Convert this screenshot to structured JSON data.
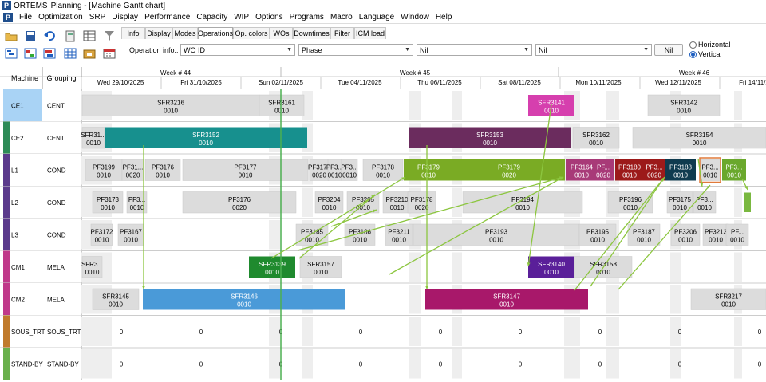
{
  "window": {
    "app": "ORTEMS",
    "title": "Planning - [Machine Gantt chart]",
    "app_icon": "P"
  },
  "menu": [
    "File",
    "Optimization",
    "SRP",
    "Display",
    "Performance",
    "Capacity",
    "WIP",
    "Options",
    "Programs",
    "Macro",
    "Language",
    "Window",
    "Help"
  ],
  "tabs": [
    "Info",
    "Display",
    "Modes",
    "Operations",
    "Op. colors",
    "WOs",
    "Downtimes",
    "Filter",
    "ICM load"
  ],
  "active_tab": "Operations",
  "operation_info": {
    "label": "Operation info.:",
    "field1": "WO ID",
    "field2": "Phase",
    "field3": "Nil",
    "field4": "Nil",
    "button": "Nil"
  },
  "orientation": {
    "horizontal": "Horizontal",
    "vertical": "Vertical",
    "selected": "Vertical"
  },
  "columns": {
    "machine": "Machine",
    "grouping": "Grouping"
  },
  "weeks": [
    {
      "label": "Week # 44",
      "x": 1
    },
    {
      "label": "Week # 45",
      "x": 1
    },
    {
      "label": "Week # 46",
      "x": 1
    }
  ],
  "days": [
    "Wed 29/10/2025",
    "Fri 31/10/2025",
    "Sun 02/11/2025",
    "Tue 04/11/2025",
    "Thu 06/11/2025",
    "Sat 08/11/2025",
    "Mon 10/11/2025",
    "Wed 12/11/2025",
    "Fri 14/11/2"
  ],
  "rows": [
    {
      "machine": "CE1",
      "grouping": "CENT",
      "color": "#a9d3f5"
    },
    {
      "machine": "CE2",
      "grouping": "CENT",
      "color": "#2e8b57"
    },
    {
      "machine": "L1",
      "grouping": "COND",
      "color": "#5b3a8c"
    },
    {
      "machine": "L2",
      "grouping": "COND",
      "color": "#5b3a8c"
    },
    {
      "machine": "L3",
      "grouping": "COND",
      "color": "#5b3a8c"
    },
    {
      "machine": "CM1",
      "grouping": "MELA",
      "color": "#c0398a"
    },
    {
      "machine": "CM2",
      "grouping": "MELA",
      "color": "#c0398a"
    },
    {
      "machine": "SOUS_TRT",
      "grouping": "SOUS_TRT",
      "color": "#c07a2c"
    },
    {
      "machine": "STAND-BY",
      "grouping": "STAND-BY",
      "color": "#6ab04c"
    }
  ],
  "ops": [
    {
      "r": 0,
      "a": "SFR3216",
      "b": "0010"
    },
    {
      "r": 0,
      "a": "SFR3161",
      "b": "0010"
    },
    {
      "r": 0,
      "a": "SFR3141",
      "b": "0010",
      "c": "#d63fae"
    },
    {
      "r": 0,
      "a": "SFR3142",
      "b": "0010"
    },
    {
      "r": 1,
      "a": "SFR31...",
      "b": "0010"
    },
    {
      "r": 1,
      "a": "SFR3152",
      "b": "0010",
      "c": "#17908e"
    },
    {
      "r": 1,
      "a": "SFR3153",
      "b": "0010",
      "c": "#6b2c5e"
    },
    {
      "r": 1,
      "a": "SFR3162",
      "b": "0010"
    },
    {
      "r": 1,
      "a": "SFR3154",
      "b": "0010"
    },
    {
      "r": 2,
      "a": "PF3199",
      "b": "0010"
    },
    {
      "r": 2,
      "a": "PF31...",
      "b": "0020"
    },
    {
      "r": 2,
      "a": "PF3176",
      "b": "0010"
    },
    {
      "r": 2,
      "a": "PF3177",
      "b": "0010"
    },
    {
      "r": 2,
      "a": "PF3177",
      "b": "0020"
    },
    {
      "r": 2,
      "a": "PF3...",
      "b": "0010"
    },
    {
      "r": 2,
      "a": "PF3...",
      "b": "0010"
    },
    {
      "r": 2,
      "a": "PF3178",
      "b": "0010"
    },
    {
      "r": 2,
      "a": "PF3179",
      "b": "0010",
      "c": "#7aab24"
    },
    {
      "r": 2,
      "a": "PF3179",
      "b": "0020",
      "c": "#7aab24"
    },
    {
      "r": 2,
      "a": "PF3164",
      "b": "0010",
      "c": "#a83a78"
    },
    {
      "r": 2,
      "a": "PF...",
      "b": "0020",
      "c": "#a83a78"
    },
    {
      "r": 2,
      "a": "PF3180",
      "b": "0010",
      "c": "#9c1a1a"
    },
    {
      "r": 2,
      "a": "PF3...",
      "b": "0020",
      "c": "#9c1a1a"
    },
    {
      "r": 2,
      "a": "PF3188",
      "b": "0010",
      "c": "#0f3b4f"
    },
    {
      "r": 2,
      "a": "PF3...",
      "b": "0010"
    },
    {
      "r": 2,
      "a": "PF3...",
      "b": "0010",
      "c": "#6aa82c"
    },
    {
      "r": 3,
      "a": "PF3173",
      "b": "0010"
    },
    {
      "r": 3,
      "a": "PF3...",
      "b": "0010"
    },
    {
      "r": 3,
      "a": "PF3176",
      "b": "0020"
    },
    {
      "r": 3,
      "a": "PF3204",
      "b": "0010"
    },
    {
      "r": 3,
      "a": "PF3205",
      "b": "0010"
    },
    {
      "r": 3,
      "a": "PF3210",
      "b": "0010"
    },
    {
      "r": 3,
      "a": "PF3178",
      "b": "0020"
    },
    {
      "r": 3,
      "a": "PF3194",
      "b": "0010"
    },
    {
      "r": 3,
      "a": "PF3196",
      "b": "0010"
    },
    {
      "r": 3,
      "a": "PF3175",
      "b": "0010"
    },
    {
      "r": 3,
      "a": "PF3...",
      "b": "0010"
    },
    {
      "r": 4,
      "a": "PF3172",
      "b": "0010"
    },
    {
      "r": 4,
      "a": "PF3167",
      "b": "0010"
    },
    {
      "r": 4,
      "a": "PF3185",
      "b": "0010"
    },
    {
      "r": 4,
      "a": "PF3186",
      "b": "0010"
    },
    {
      "r": 4,
      "a": "PF3211",
      "b": "0010"
    },
    {
      "r": 4,
      "a": "PF3193",
      "b": "0010"
    },
    {
      "r": 4,
      "a": "PF3195",
      "b": "0010"
    },
    {
      "r": 4,
      "a": "PF3187",
      "b": "0010"
    },
    {
      "r": 4,
      "a": "PF3206",
      "b": "0010"
    },
    {
      "r": 4,
      "a": "PF3212",
      "b": "0010"
    },
    {
      "r": 4,
      "a": "PF...",
      "b": "0010"
    },
    {
      "r": 5,
      "a": "SFR3...",
      "b": "0010"
    },
    {
      "r": 5,
      "a": "SFR3139",
      "b": "0010",
      "c": "#1f8a2e"
    },
    {
      "r": 5,
      "a": "SFR3157",
      "b": "0010"
    },
    {
      "r": 5,
      "a": "SFR3140",
      "b": "0010",
      "c": "#5a1f99"
    },
    {
      "r": 5,
      "a": "SFR3158",
      "b": "0010"
    },
    {
      "r": 6,
      "a": "SFR3145",
      "b": "0010"
    },
    {
      "r": 6,
      "a": "SFR3146",
      "b": "0010",
      "c": "#4a9ad8"
    },
    {
      "r": 6,
      "a": "SFR3147",
      "b": "0010",
      "c": "#a8186a"
    },
    {
      "r": 6,
      "a": "SFR3217",
      "b": "0010"
    }
  ],
  "zero_label": "0"
}
